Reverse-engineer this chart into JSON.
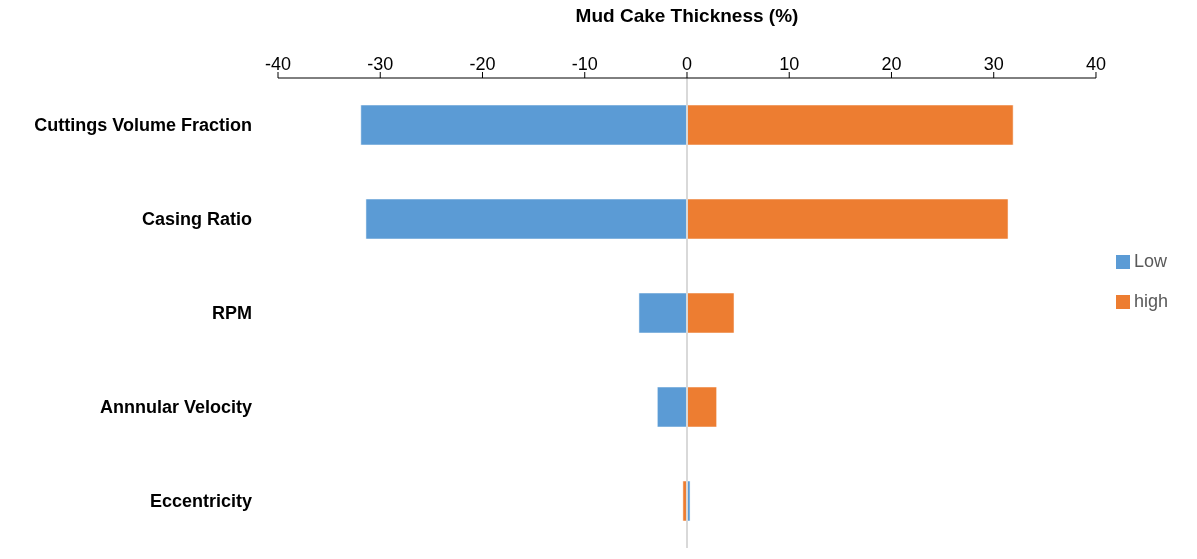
{
  "chart_data": {
    "type": "bar",
    "orientation": "horizontal",
    "xlabel": "Mud Cake Thickness (%)",
    "categories": [
      "Cuttings Volume Fraction",
      "Casing Ratio",
      "RPM",
      "Annnular Velocity",
      "Eccentricity"
    ],
    "series": [
      {
        "name": "Low",
        "color": "#5b9bd5",
        "values": [
          -31.9,
          -31.4,
          -4.7,
          -2.9,
          0.3
        ]
      },
      {
        "name": "high",
        "color": "#ed7d31",
        "values": [
          31.9,
          31.4,
          4.6,
          2.9,
          -0.4
        ]
      }
    ],
    "xlim": [
      -40,
      40
    ],
    "xticks": [
      -40,
      -30,
      -20,
      -10,
      0,
      10,
      20,
      30,
      40
    ],
    "ref_lines": [
      {
        "axis": "x",
        "value": 0,
        "color": "#d9d9d9"
      }
    ],
    "stacked": true,
    "grid": false,
    "legend": "right"
  }
}
